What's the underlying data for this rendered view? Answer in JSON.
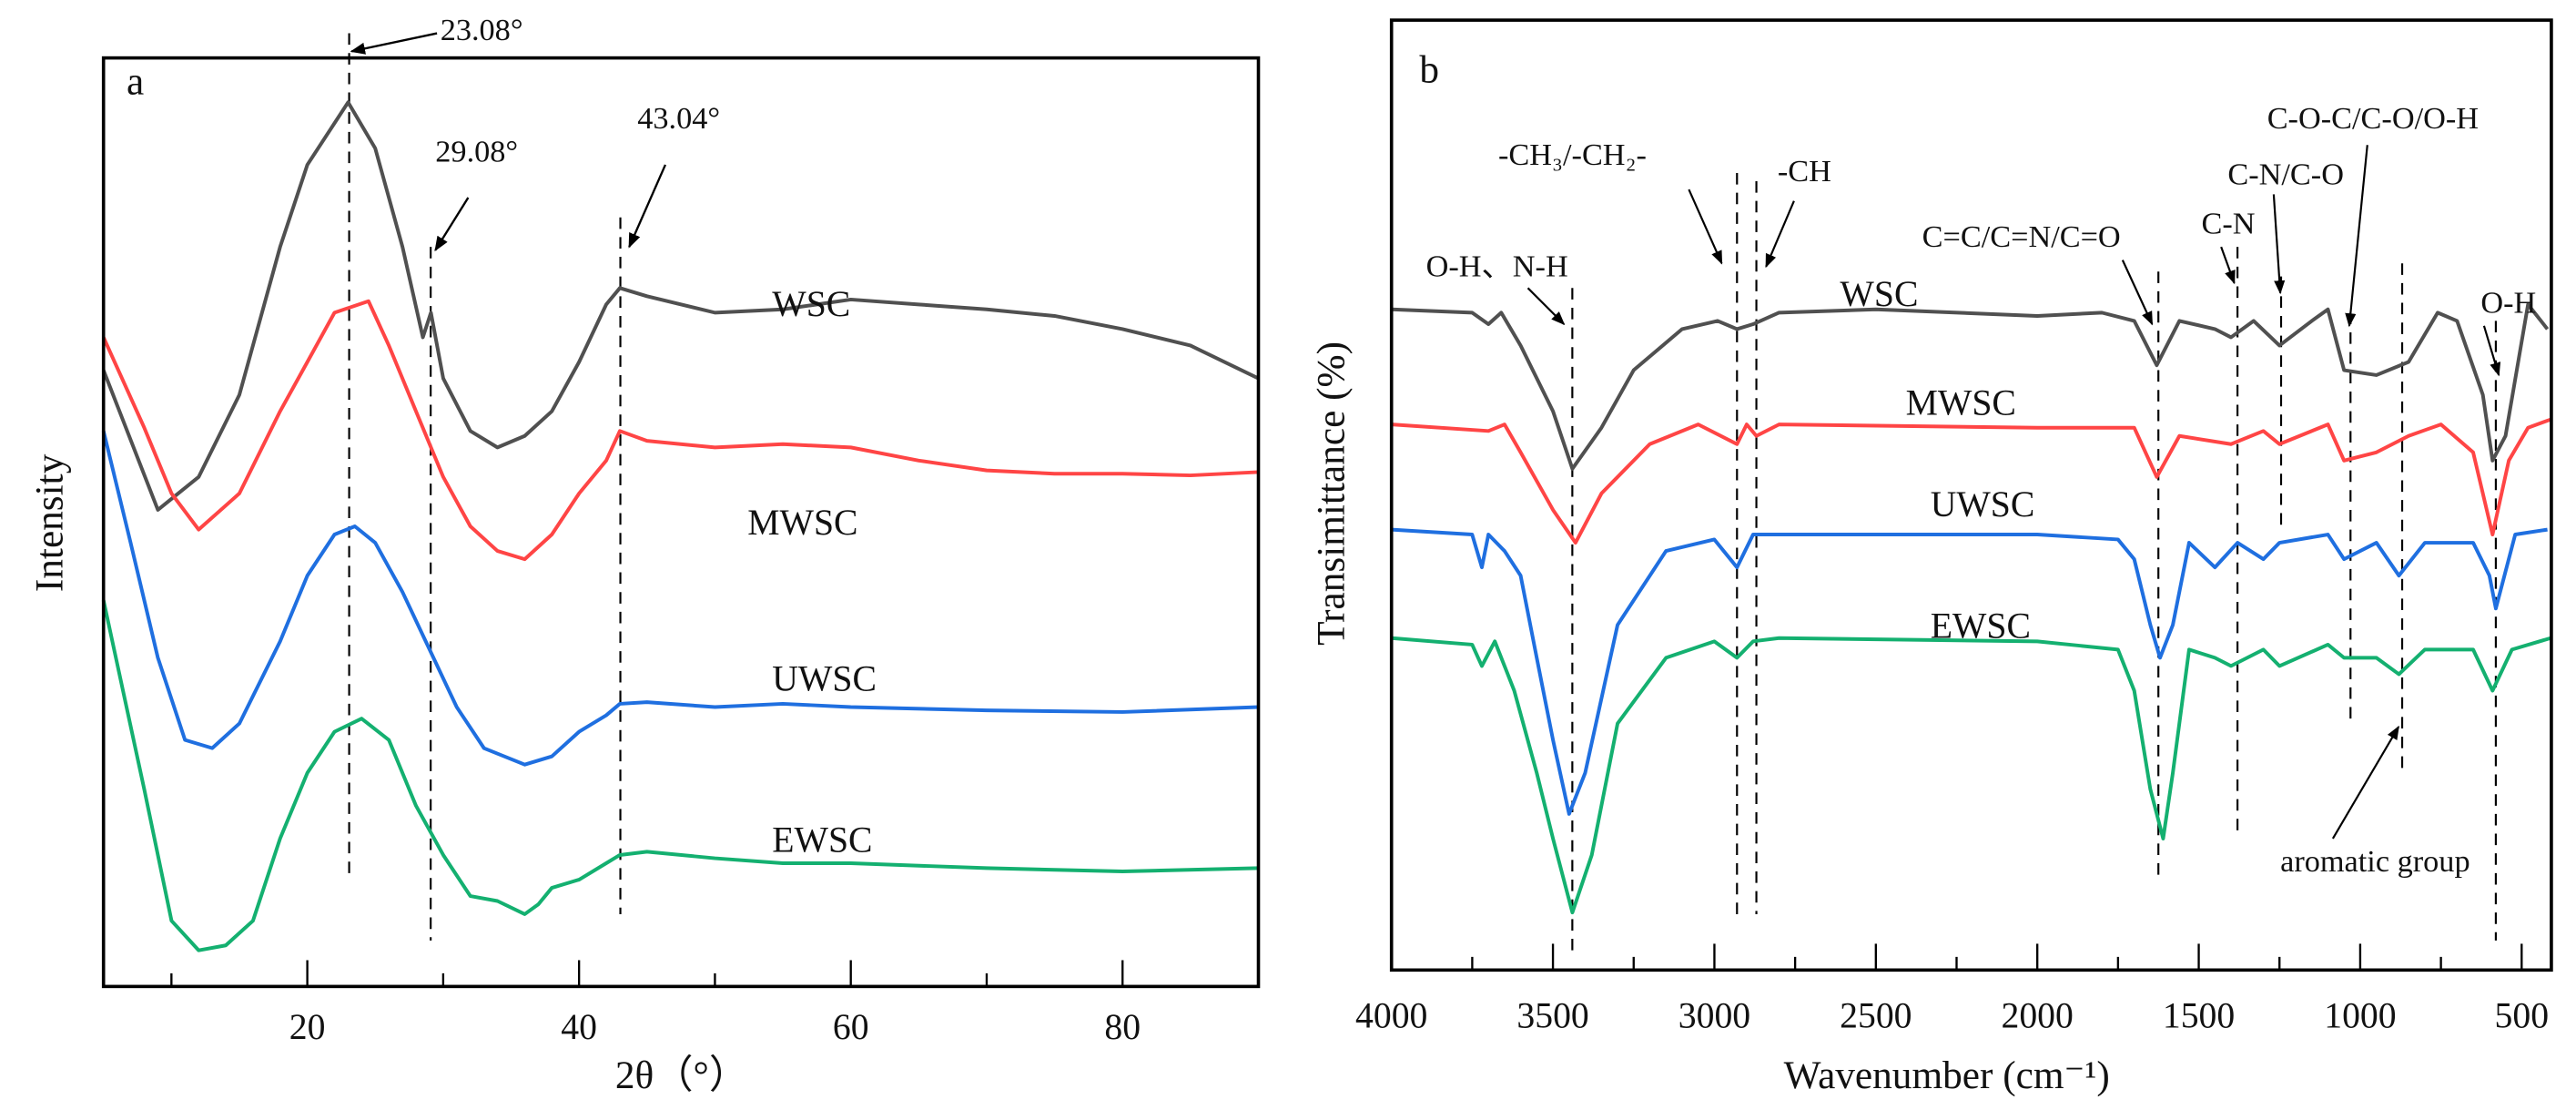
{
  "chart_data": [
    {
      "type": "line",
      "panel": "a",
      "title": "",
      "xlabel": "2θ（°）",
      "ylabel": "Intensity",
      "xlim": [
        5,
        90
      ],
      "ylim": [
        0,
        565
      ],
      "y_units": "a.u. (stacked, offset)",
      "xticks": [
        20,
        40,
        60,
        80
      ],
      "xticks_minor": [
        10,
        30,
        50,
        70
      ],
      "grid": false,
      "series": [
        {
          "name": "WSC",
          "color": "#505050",
          "x": [
            5,
            9,
            12,
            15,
            18,
            20,
            23,
            25,
            27,
            28.5,
            29.1,
            30,
            32,
            34,
            36,
            38,
            40,
            42,
            43,
            45,
            50,
            55,
            60,
            65,
            70,
            75,
            80,
            85,
            90
          ],
          "y": [
            375,
            290,
            310,
            360,
            450,
            500,
            538,
            510,
            450,
            395,
            410,
            370,
            338,
            328,
            335,
            350,
            380,
            415,
            425,
            420,
            410,
            412,
            418,
            415,
            412,
            408,
            400,
            390,
            370
          ]
        },
        {
          "name": "MWSC",
          "color": "#ff4545",
          "x": [
            5,
            8,
            10,
            12,
            15,
            18,
            20,
            22,
            24.5,
            26,
            28,
            30,
            32,
            34,
            36,
            38,
            40,
            42,
            43,
            45,
            50,
            55,
            60,
            65,
            70,
            75,
            80,
            85,
            90
          ],
          "y": [
            395,
            340,
            300,
            278,
            300,
            350,
            380,
            410,
            417,
            390,
            350,
            310,
            280,
            265,
            260,
            275,
            300,
            320,
            338,
            332,
            328,
            330,
            328,
            320,
            314,
            312,
            312,
            311,
            313
          ]
        },
        {
          "name": "UWSC",
          "color": "#1f6fe0",
          "x": [
            5,
            7,
            9,
            11,
            13,
            15,
            18,
            20,
            22,
            23.5,
            25,
            27,
            29,
            31,
            33,
            36,
            38,
            40,
            42,
            43,
            45,
            50,
            55,
            60,
            70,
            80,
            90
          ],
          "y": [
            338,
            270,
            200,
            150,
            145,
            160,
            210,
            250,
            275,
            280,
            270,
            240,
            205,
            170,
            145,
            135,
            140,
            155,
            165,
            172,
            173,
            170,
            172,
            170,
            168,
            167,
            170
          ]
        },
        {
          "name": "EWSC",
          "color": "#14b070",
          "x": [
            5,
            8,
            10,
            12,
            14,
            16,
            18,
            20,
            22,
            24,
            26,
            28,
            30,
            32,
            34,
            36,
            37,
            38,
            40,
            42,
            43,
            45,
            50,
            55,
            60,
            70,
            80,
            90
          ],
          "y": [
            235,
            120,
            40,
            22,
            25,
            40,
            90,
            130,
            155,
            163,
            150,
            110,
            80,
            55,
            52,
            44,
            50,
            60,
            65,
            75,
            80,
            82,
            78,
            75,
            75,
            72,
            70,
            72
          ]
        }
      ],
      "reference_lines": [
        23.08,
        29.08,
        43.04
      ],
      "annotations": {
        "panel_letter": "a",
        "peak1": "23.08°",
        "peak2": "29.08°",
        "peak3": "43.04°"
      }
    },
    {
      "type": "line",
      "panel": "b",
      "title": "",
      "xlabel": "Wavenumber (cm⁻¹)",
      "ylabel": "Transimittance (%)",
      "xlim": [
        4000,
        408
      ],
      "ylim": [
        0,
        578
      ],
      "y_units": "a.u. (stacked, offset)",
      "xticks": [
        4000,
        3500,
        3000,
        2500,
        2000,
        1500,
        1000,
        500
      ],
      "xticks_minor": [
        3750,
        3250,
        2750,
        2250,
        1750,
        1250,
        750
      ],
      "grid": false,
      "series": [
        {
          "name": "WSC",
          "color": "#505050",
          "x": [
            4000,
            3750,
            3700,
            3660,
            3600,
            3500,
            3440,
            3350,
            3250,
            3100,
            2990,
            2930,
            2880,
            2800,
            2500,
            2000,
            1800,
            1700,
            1630,
            1560,
            1450,
            1400,
            1330,
            1250,
            1150,
            1100,
            1050,
            950,
            850,
            760,
            700,
            620,
            590,
            550,
            480,
            420
          ],
          "y": [
            402,
            400,
            393,
            400,
            380,
            340,
            305,
            330,
            365,
            390,
            395,
            390,
            393,
            400,
            402,
            398,
            400,
            395,
            368,
            395,
            390,
            385,
            395,
            380,
            395,
            402,
            365,
            362,
            370,
            400,
            395,
            350,
            310,
            325,
            405,
            390
          ]
        },
        {
          "name": "MWSC",
          "color": "#ff4545",
          "x": [
            4000,
            3700,
            3650,
            3600,
            3500,
            3430,
            3350,
            3200,
            3050,
            2930,
            2900,
            2870,
            2800,
            2000,
            1700,
            1630,
            1560,
            1400,
            1300,
            1250,
            1100,
            1050,
            950,
            850,
            750,
            650,
            590,
            540,
            480,
            410
          ],
          "y": [
            332,
            328,
            332,
            315,
            280,
            260,
            290,
            320,
            332,
            320,
            332,
            325,
            332,
            330,
            330,
            300,
            325,
            320,
            328,
            320,
            332,
            310,
            315,
            325,
            332,
            315,
            265,
            310,
            330,
            335
          ]
        },
        {
          "name": "UWSC",
          "color": "#1f6fe0",
          "x": [
            4000,
            3750,
            3720,
            3700,
            3650,
            3600,
            3550,
            3500,
            3450,
            3400,
            3300,
            3150,
            3000,
            2930,
            2880,
            2800,
            2000,
            1750,
            1700,
            1650,
            1620,
            1580,
            1530,
            1450,
            1380,
            1300,
            1250,
            1100,
            1050,
            950,
            880,
            800,
            650,
            600,
            580,
            520,
            420
          ],
          "y": [
            268,
            265,
            245,
            265,
            255,
            240,
            190,
            140,
            95,
            120,
            210,
            255,
            262,
            245,
            265,
            265,
            265,
            262,
            250,
            210,
            190,
            210,
            260,
            245,
            260,
            250,
            260,
            265,
            250,
            260,
            240,
            260,
            260,
            240,
            220,
            265,
            268
          ]
        },
        {
          "name": "EWSC",
          "color": "#14b070",
          "x": [
            4000,
            3750,
            3720,
            3680,
            3620,
            3550,
            3500,
            3440,
            3380,
            3300,
            3150,
            3000,
            2930,
            2880,
            2800,
            2000,
            1750,
            1700,
            1650,
            1610,
            1580,
            1530,
            1450,
            1400,
            1300,
            1250,
            1100,
            1050,
            950,
            880,
            800,
            650,
            590,
            530,
            410
          ],
          "y": [
            202,
            198,
            185,
            200,
            170,
            120,
            80,
            35,
            70,
            150,
            190,
            200,
            190,
            200,
            202,
            200,
            195,
            170,
            110,
            80,
            120,
            195,
            190,
            185,
            195,
            185,
            198,
            190,
            190,
            180,
            195,
            195,
            170,
            195,
            202
          ]
        }
      ],
      "reference_lines": [
        3440,
        2930,
        2870,
        1625,
        1380,
        1245,
        1030,
        870,
        580
      ],
      "annotations": {
        "panel_letter": "b",
        "oh_nh": "O-H、N-H",
        "ch3_ch2": "-CH₃/-CH₂-",
        "ch": "-CH",
        "cc_cn_co": "C=C/C=N/C=O",
        "cn": "C-N",
        "cn_co": "C-N/C-O",
        "coc_co_oh": "C-O-C/C-O/O-H",
        "oh": "O-H",
        "aromatic": "aromatic group"
      }
    }
  ]
}
